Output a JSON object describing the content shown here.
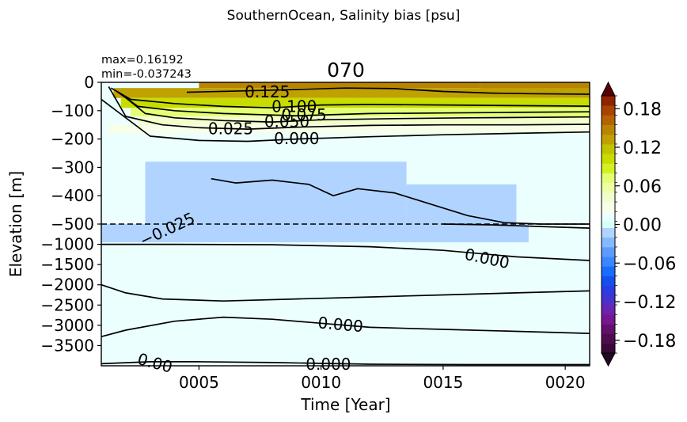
{
  "suptitle": "SouthernOcean, Salinity bias [psu]",
  "chart_data": {
    "type": "heatmap",
    "title": "070",
    "stats": {
      "max": "max=0.16192",
      "min": "min=-0.037243"
    },
    "xlabel": "Time [Year]",
    "ylabel": "Elevation [m]",
    "xlim": [
      1,
      21
    ],
    "x_ticks": [
      {
        "value": 5,
        "label": "0005"
      },
      {
        "value": 10,
        "label": "0010"
      },
      {
        "value": 15,
        "label": "0015"
      },
      {
        "value": 20,
        "label": "0020"
      }
    ],
    "upper_panel": {
      "ylim": [
        -500,
        0
      ],
      "y_ticks": [
        0,
        -100,
        -200,
        -300,
        -400,
        -500
      ],
      "y_tick_labels": [
        "0",
        "−100",
        "−200",
        "−300",
        "−400",
        "−500"
      ]
    },
    "lower_panel": {
      "ylim": [
        -4000,
        -500
      ],
      "y_ticks": [
        -1000,
        -1500,
        -2000,
        -2500,
        -3000,
        -3500
      ],
      "y_tick_labels": [
        "−1000",
        "−1500",
        "−2000",
        "−2500",
        "−3000",
        "−3500"
      ]
    },
    "panel_split_depth": -500,
    "colorbar": {
      "min": -0.2,
      "max": 0.2,
      "extend": "both",
      "ticks": [
        -0.18,
        -0.12,
        -0.06,
        0.0,
        0.06,
        0.12,
        0.18
      ],
      "tick_labels": [
        "−0.18",
        "−0.12",
        "−0.06",
        "0.00",
        "0.06",
        "0.12",
        "0.18"
      ],
      "levels": [
        -0.2,
        -0.185,
        -0.17,
        -0.155,
        -0.14,
        -0.125,
        -0.11,
        -0.095,
        -0.08,
        -0.065,
        -0.05,
        -0.035,
        -0.02,
        -0.005,
        0.005,
        0.02,
        0.035,
        0.05,
        0.065,
        0.08,
        0.095,
        0.11,
        0.125,
        0.14,
        0.155,
        0.17,
        0.185,
        0.2
      ],
      "colors": [
        "#3a0a36",
        "#4e0d50",
        "#62106a",
        "#761690",
        "#6a24b0",
        "#4a30cc",
        "#2c3ce0",
        "#1450f0",
        "#1a6cff",
        "#3c86ff",
        "#5c9cff",
        "#86b8ff",
        "#b0d4ff",
        "#d4ffff",
        "#ecffff",
        "#f8ffe8",
        "#f2ffcc",
        "#eeffa6",
        "#e4ff74",
        "#d4f020",
        "#c8dc00",
        "#c2c200",
        "#bfa100",
        "#b98400",
        "#b56200",
        "#a84400",
        "#902400",
        "#7a0a00"
      ],
      "under_color": "#220822",
      "over_color": "#5a0000"
    },
    "field_bands": [
      {
        "label": "0.17",
        "value": 0.17,
        "x0": 20.5,
        "x1": 21,
        "y0": 0,
        "y1": -25
      },
      {
        "label": "0.15",
        "value": 0.15,
        "x0": 16.5,
        "x1": 21,
        "y0": 0,
        "y1": -22
      },
      {
        "label": "0.14",
        "value": 0.14,
        "x0": 5,
        "x1": 16.5,
        "y0": 0,
        "y1": -20
      },
      {
        "label": "0.13",
        "value": 0.13,
        "x0": 1.5,
        "x1": 21,
        "y0": -20,
        "y1": -55
      },
      {
        "label": "0.10",
        "value": 0.1,
        "x0": 1.8,
        "x1": 21,
        "y0": -55,
        "y1": -90
      },
      {
        "label": "0.07",
        "value": 0.07,
        "x0": 2.2,
        "x1": 21,
        "y0": -90,
        "y1": -120
      },
      {
        "label": "0.045",
        "value": 0.045,
        "x0": 2.5,
        "x1": 21,
        "y0": -120,
        "y1": -150
      },
      {
        "label": "0.025",
        "value": 0.025,
        "x0": 1.3,
        "x1": 21,
        "y0": -150,
        "y1": -180
      },
      {
        "label": "0.012",
        "value": 0.012,
        "x0": 4.5,
        "x1": 21,
        "y0": -180,
        "y1": -270
      },
      {
        "label": "-0.012",
        "value": -0.012,
        "x0": 2.8,
        "x1": 13.5,
        "y0": -280,
        "y1": -500
      },
      {
        "label": "-0.012b",
        "value": -0.012,
        "x0": 13.5,
        "x1": 18,
        "y0": -360,
        "y1": -500
      },
      {
        "label": "-0.012c",
        "value": -0.012,
        "x0": 1,
        "x1": 18.5,
        "y0": -500,
        "y1": -950
      },
      {
        "label": "0.008",
        "value": 0.008,
        "x0": 1,
        "x1": 21,
        "y0": -1000,
        "y1": -2050
      },
      {
        "label": "0.008b",
        "value": 0.008,
        "x0": 2.5,
        "x1": 21,
        "y0": -2050,
        "y1": -2400
      },
      {
        "label": "0.008c",
        "value": 0.008,
        "x0": 1,
        "x1": 21,
        "y0": -3400,
        "y1": -4000
      }
    ],
    "contours": [
      {
        "label": "0.125",
        "points": [
          [
            4.5,
            -35
          ],
          [
            7,
            -30
          ],
          [
            9,
            -25
          ],
          [
            11,
            -20
          ],
          [
            13,
            -22
          ],
          [
            15,
            -32
          ],
          [
            17,
            -38
          ],
          [
            18.5,
            -40
          ],
          [
            21,
            -42
          ]
        ]
      },
      {
        "label": "0.100",
        "points": [
          [
            1.4,
            -20
          ],
          [
            2.2,
            -60
          ],
          [
            4,
            -75
          ],
          [
            6,
            -85
          ],
          [
            8,
            -90
          ],
          [
            10,
            -80
          ],
          [
            12,
            -78
          ],
          [
            15,
            -80
          ],
          [
            18,
            -82
          ],
          [
            21,
            -84
          ]
        ]
      },
      {
        "label": "0.075",
        "points": [
          [
            1.6,
            -30
          ],
          [
            2.5,
            -85
          ],
          [
            4,
            -100
          ],
          [
            6,
            -110
          ],
          [
            9,
            -118
          ],
          [
            12,
            -110
          ],
          [
            15,
            -108
          ],
          [
            18,
            -106
          ],
          [
            21,
            -104
          ]
        ]
      },
      {
        "label": "0.050",
        "points": [
          [
            1.8,
            -40
          ],
          [
            2.8,
            -110
          ],
          [
            4,
            -125
          ],
          [
            6,
            -135
          ],
          [
            8,
            -140
          ],
          [
            10,
            -132
          ],
          [
            13,
            -128
          ],
          [
            16,
            -125
          ],
          [
            21,
            -122
          ]
        ]
      },
      {
        "label": "0.025",
        "points": [
          [
            1.3,
            -15
          ],
          [
            2,
            -120
          ],
          [
            3.5,
            -150
          ],
          [
            5,
            -160
          ],
          [
            7,
            -165
          ],
          [
            9,
            -158
          ],
          [
            12,
            -152
          ],
          [
            15,
            -150
          ],
          [
            18,
            -150
          ],
          [
            21,
            -148
          ]
        ]
      },
      {
        "label": "0.000",
        "points": [
          [
            1,
            -60
          ],
          [
            3,
            -190
          ],
          [
            5,
            -205
          ],
          [
            7,
            -208
          ],
          [
            9,
            -200
          ],
          [
            12,
            -192
          ],
          [
            15,
            -185
          ],
          [
            18,
            -180
          ],
          [
            21,
            -175
          ]
        ]
      },
      {
        "label": "0.000 (a)",
        "points": [
          [
            1,
            -1000
          ],
          [
            4,
            -1000
          ],
          [
            8,
            -1010
          ],
          [
            12,
            -1060
          ],
          [
            15,
            -1150
          ],
          [
            18,
            -1310
          ],
          [
            21,
            -1400
          ]
        ]
      },
      {
        "label": "0.000 (b)",
        "points": [
          [
            1,
            -2000
          ],
          [
            2,
            -2200
          ],
          [
            3.5,
            -2350
          ],
          [
            6,
            -2400
          ],
          [
            9,
            -2350
          ],
          [
            12,
            -2300
          ],
          [
            15,
            -2250
          ],
          [
            18,
            -2200
          ],
          [
            21,
            -2150
          ]
        ]
      },
      {
        "label": "0.000 (c)",
        "points": [
          [
            1,
            -3280
          ],
          [
            2,
            -3120
          ],
          [
            4,
            -2900
          ],
          [
            6,
            -2800
          ],
          [
            8,
            -2850
          ],
          [
            10,
            -2950
          ],
          [
            12,
            -3050
          ],
          [
            15,
            -3100
          ],
          [
            18,
            -3150
          ],
          [
            21,
            -3200
          ]
        ]
      },
      {
        "label": "0.000 (d)",
        "points": [
          [
            1,
            -3950
          ],
          [
            3,
            -3900
          ],
          [
            5,
            -3900
          ],
          [
            8,
            -3920
          ],
          [
            12,
            -3960
          ],
          [
            16,
            -3970
          ],
          [
            21,
            -3970
          ]
        ]
      },
      {
        "label": "-0.025",
        "points": [
          [
            5.5,
            -340
          ],
          [
            6.5,
            -355
          ],
          [
            8,
            -345
          ],
          [
            9.5,
            -360
          ],
          [
            10.5,
            -400
          ],
          [
            11.5,
            -375
          ],
          [
            13,
            -390
          ],
          [
            14.5,
            -430
          ],
          [
            16,
            -470
          ],
          [
            17.5,
            -495
          ],
          [
            19,
            -500
          ],
          [
            21,
            -500
          ]
        ]
      },
      {
        "label": "-0.025 (lower)",
        "points": [
          [
            21,
            -600
          ],
          [
            19,
            -560
          ],
          [
            17,
            -520
          ],
          [
            15,
            -500
          ]
        ]
      }
    ],
    "contour_labels": [
      {
        "text": "0.125",
        "x": 7.8,
        "y": -33
      },
      {
        "text": "0.100",
        "x": 8.9,
        "y": -85
      },
      {
        "text": "0.075",
        "x": 9.3,
        "y": -115
      },
      {
        "text": "0.050",
        "x": 8.6,
        "y": -138
      },
      {
        "text": "0.025",
        "x": 6.3,
        "y": -163
      },
      {
        "text": "0.000",
        "x": 9,
        "y": -198
      },
      {
        "text": "−0.025",
        "x": 3.7,
        "y": -630,
        "rotate": -25
      },
      {
        "text": "0.000",
        "x": 16.8,
        "y": -1350,
        "rotate": 12
      },
      {
        "text": "0.000",
        "x": 10.8,
        "y": -2980,
        "rotate": 5
      },
      {
        "text": "0.000",
        "x": 10.3,
        "y": -3960
      },
      {
        "text": "0.00",
        "x": 3.2,
        "y": -3930,
        "rotate": 15
      }
    ]
  }
}
